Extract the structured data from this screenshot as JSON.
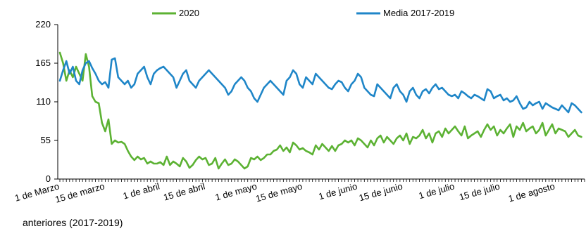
{
  "chart_data": {
    "type": "line",
    "y_ticks": [
      "220",
      "165",
      "110",
      "55",
      "0"
    ],
    "ylim": [
      0,
      220
    ],
    "grid": false,
    "legend_position": "top",
    "x_tick_labels": [
      "1 de Marzo",
      "15 de marzo",
      "1 de abril",
      "15 de abril",
      "1 de mayo",
      "15 de mayo",
      "1 de junio",
      "15 de junio",
      "1 de julio",
      "15 de julio",
      "1 de agosto"
    ],
    "x_tick_days": [
      0,
      14,
      31,
      45,
      61,
      75,
      92,
      106,
      122,
      136,
      153
    ],
    "x_days_total": 162,
    "series": [
      {
        "name": "2020",
        "color": "#5cb233",
        "values": [
          180,
          165,
          140,
          155,
          145,
          160,
          150,
          140,
          178,
          160,
          118,
          110,
          108,
          80,
          68,
          85,
          50,
          55,
          52,
          53,
          50,
          40,
          32,
          27,
          32,
          28,
          30,
          22,
          25,
          22,
          22,
          24,
          20,
          32,
          20,
          25,
          22,
          18,
          30,
          25,
          16,
          20,
          27,
          32,
          28,
          30,
          20,
          22,
          30,
          15,
          22,
          28,
          20,
          22,
          28,
          25,
          20,
          15,
          18,
          30,
          28,
          32,
          27,
          30,
          35,
          35,
          40,
          42,
          48,
          40,
          45,
          38,
          52,
          48,
          42,
          44,
          40,
          38,
          35,
          48,
          42,
          50,
          45,
          40,
          47,
          40,
          48,
          50,
          55,
          52,
          55,
          48,
          58,
          55,
          50,
          45,
          55,
          48,
          58,
          62,
          52,
          60,
          55,
          50,
          58,
          62,
          55,
          65,
          50,
          60,
          58,
          62,
          70,
          58,
          65,
          52,
          65,
          68,
          60,
          72,
          65,
          70,
          75,
          68,
          62,
          75,
          58,
          62,
          65,
          68,
          60,
          70,
          78,
          70,
          75,
          62,
          70,
          65,
          72,
          78,
          60,
          75,
          70,
          80,
          68,
          72,
          75,
          65,
          70,
          80,
          62,
          70,
          78,
          65,
          72,
          70,
          68,
          60,
          65,
          70,
          62,
          60
        ]
      },
      {
        "name": "Media 2017-2019",
        "color": "#1f86c8",
        "values": [
          140,
          155,
          168,
          150,
          160,
          140,
          135,
          155,
          165,
          168,
          158,
          150,
          140,
          135,
          138,
          130,
          170,
          172,
          145,
          140,
          135,
          140,
          130,
          135,
          150,
          155,
          160,
          145,
          135,
          150,
          155,
          158,
          160,
          155,
          150,
          145,
          130,
          140,
          150,
          155,
          140,
          135,
          130,
          140,
          145,
          150,
          155,
          150,
          145,
          140,
          135,
          130,
          120,
          125,
          135,
          140,
          145,
          140,
          130,
          125,
          115,
          110,
          120,
          130,
          135,
          140,
          135,
          130,
          125,
          120,
          140,
          145,
          155,
          150,
          135,
          130,
          145,
          140,
          135,
          150,
          145,
          140,
          135,
          130,
          128,
          135,
          140,
          138,
          130,
          125,
          135,
          140,
          150,
          145,
          130,
          125,
          120,
          118,
          135,
          130,
          125,
          120,
          115,
          130,
          135,
          125,
          120,
          110,
          125,
          130,
          120,
          115,
          125,
          128,
          122,
          130,
          135,
          128,
          130,
          125,
          120,
          118,
          120,
          115,
          125,
          122,
          118,
          115,
          120,
          118,
          115,
          112,
          128,
          125,
          115,
          118,
          120,
          112,
          115,
          110,
          112,
          118,
          108,
          100,
          102,
          110,
          105,
          108,
          110,
          100,
          108,
          105,
          102,
          100,
          98,
          105,
          100,
          95,
          108,
          105,
          100,
          95
        ]
      }
    ]
  },
  "footnote": "anteriores (2017-2019)"
}
